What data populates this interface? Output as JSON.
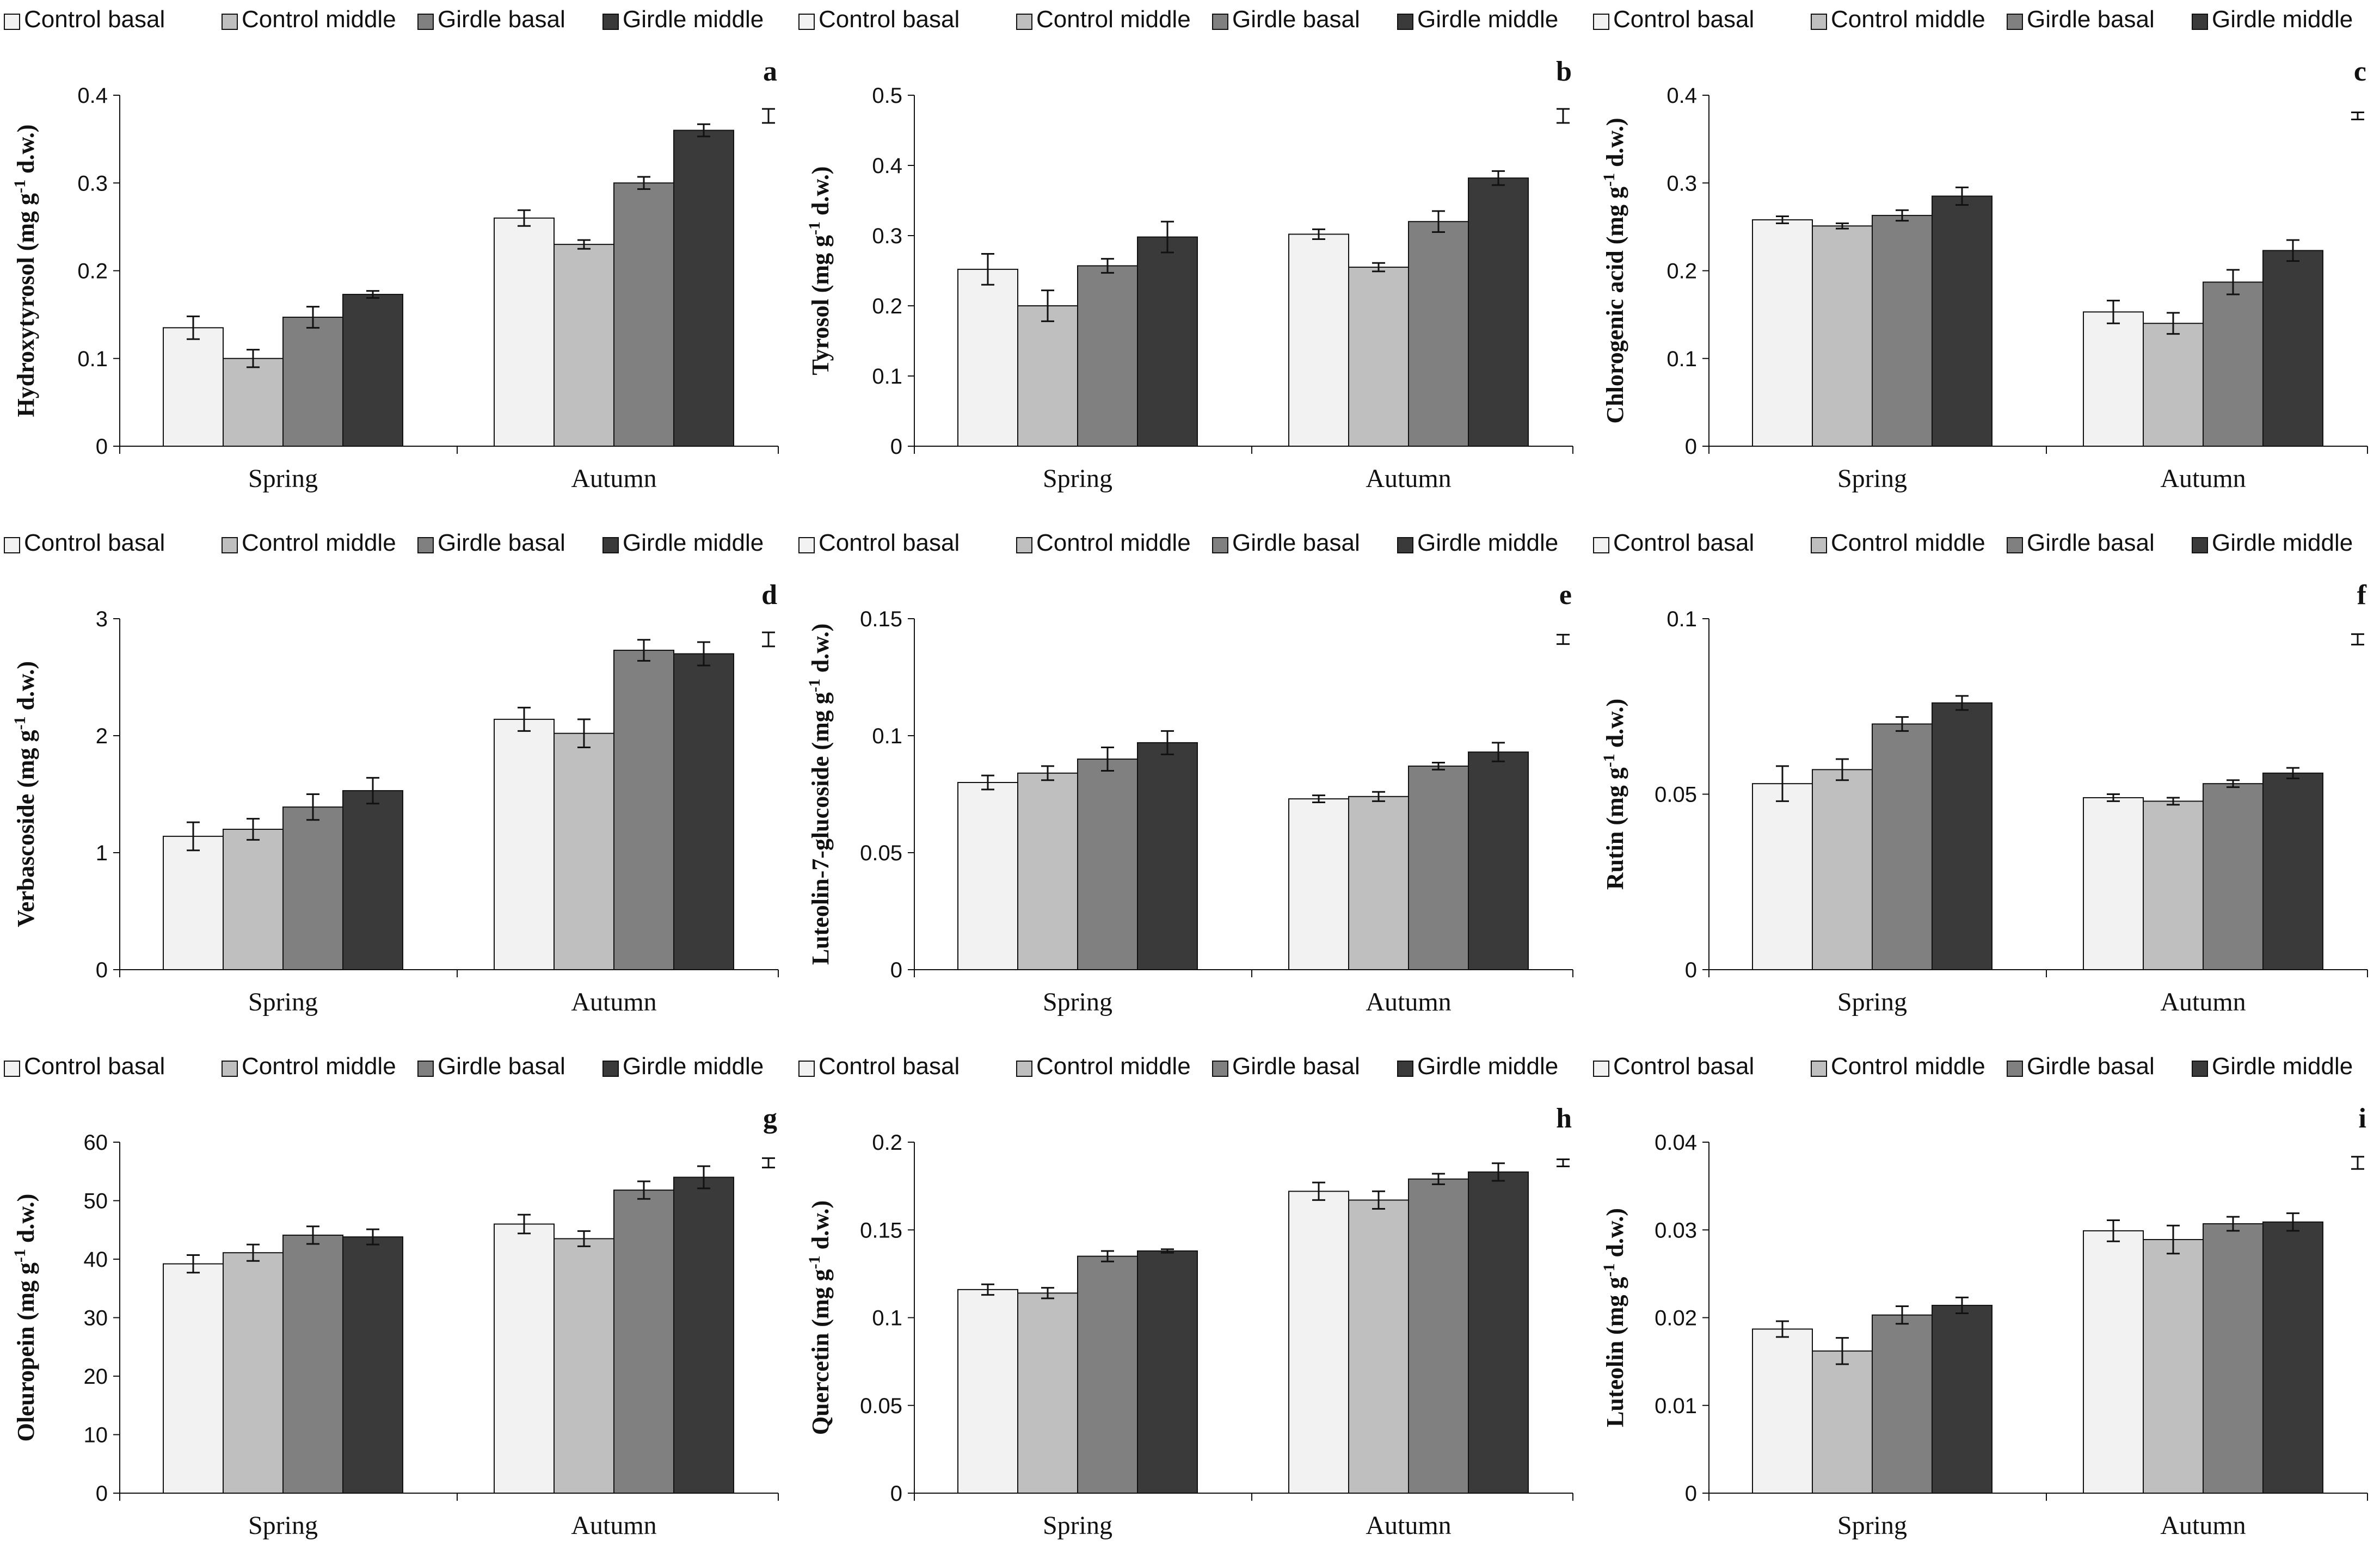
{
  "legend_labels": [
    "Control basal",
    "Control middle",
    "Girdle basal",
    "Girdle middle"
  ],
  "series_colors": [
    "#f2f2f2",
    "#bfbfbf",
    "#808080",
    "#3a3a3a"
  ],
  "chart_data": [
    {
      "type": "bar",
      "panel": "a",
      "ylabel": "Hydroxytyrosol (mg g-1 d.w.)",
      "ylabel_parts": {
        "before": "Hydroxytyrosol (mg g",
        "sup": "-1",
        "after": " d.w.)"
      },
      "categories": [
        "Spring",
        "Autumn"
      ],
      "ylim": [
        0,
        0.4
      ],
      "yticks": [
        "0",
        "0.1",
        "0.2",
        "0.3",
        "0.4"
      ],
      "series": [
        {
          "name": "Control basal",
          "values": [
            0.135,
            0.26
          ],
          "errors": [
            0.013,
            0.009
          ]
        },
        {
          "name": "Control middle",
          "values": [
            0.1,
            0.23
          ],
          "errors": [
            0.01,
            0.005
          ]
        },
        {
          "name": "Girdle basal",
          "values": [
            0.147,
            0.3
          ],
          "errors": [
            0.012,
            0.007
          ]
        },
        {
          "name": "Girdle middle",
          "values": [
            0.173,
            0.36
          ],
          "errors": [
            0.004,
            0.007
          ]
        }
      ],
      "scale_bar": 0.008
    },
    {
      "type": "bar",
      "panel": "b",
      "ylabel": "Tyrosol (mg g-1 d.w.)",
      "ylabel_parts": {
        "before": "Tyrosol (mg g",
        "sup": "-1",
        "after": " d.w.)"
      },
      "categories": [
        "Spring",
        "Autumn"
      ],
      "ylim": [
        0,
        0.5
      ],
      "yticks": [
        "0",
        "0.1",
        "0.2",
        "0.3",
        "0.4",
        "0.5"
      ],
      "series": [
        {
          "name": "Control basal",
          "values": [
            0.252,
            0.302
          ],
          "errors": [
            0.022,
            0.007
          ]
        },
        {
          "name": "Control middle",
          "values": [
            0.2,
            0.255
          ],
          "errors": [
            0.022,
            0.006
          ]
        },
        {
          "name": "Girdle basal",
          "values": [
            0.257,
            0.32
          ],
          "errors": [
            0.01,
            0.015
          ]
        },
        {
          "name": "Girdle middle",
          "values": [
            0.298,
            0.382
          ],
          "errors": [
            0.022,
            0.01
          ]
        }
      ],
      "scale_bar": 0.01
    },
    {
      "type": "bar",
      "panel": "c",
      "ylabel": "Chlorogenic acid (mg g-1 d.w.)",
      "ylabel_parts": {
        "before": "Chlorogenic acid (mg g",
        "sup": "-1",
        "after": " d.w.)"
      },
      "categories": [
        "Spring",
        "Autumn"
      ],
      "ylim": [
        0,
        0.4
      ],
      "yticks": [
        "0",
        "0.1",
        "0.2",
        "0.3",
        "0.4"
      ],
      "series": [
        {
          "name": "Control basal",
          "values": [
            0.258,
            0.153
          ],
          "errors": [
            0.004,
            0.013
          ]
        },
        {
          "name": "Control middle",
          "values": [
            0.251,
            0.14
          ],
          "errors": [
            0.003,
            0.012
          ]
        },
        {
          "name": "Girdle basal",
          "values": [
            0.263,
            0.187
          ],
          "errors": [
            0.006,
            0.014
          ]
        },
        {
          "name": "Girdle middle",
          "values": [
            0.285,
            0.223
          ],
          "errors": [
            0.01,
            0.012
          ]
        }
      ],
      "scale_bar": 0.004
    },
    {
      "type": "bar",
      "panel": "d",
      "ylabel": "Verbascoside (mg g-1 d.w.)",
      "ylabel_parts": {
        "before": "Verbascoside (mg g",
        "sup": "-1",
        "after": " d.w.)"
      },
      "categories": [
        "Spring",
        "Autumn"
      ],
      "ylim": [
        0,
        3
      ],
      "yticks": [
        "0",
        "1",
        "2",
        "3"
      ],
      "series": [
        {
          "name": "Control basal",
          "values": [
            1.14,
            2.14
          ],
          "errors": [
            0.12,
            0.1
          ]
        },
        {
          "name": "Control middle",
          "values": [
            1.2,
            2.02
          ],
          "errors": [
            0.09,
            0.12
          ]
        },
        {
          "name": "Girdle basal",
          "values": [
            1.39,
            2.73
          ],
          "errors": [
            0.11,
            0.09
          ]
        },
        {
          "name": "Girdle middle",
          "values": [
            1.53,
            2.7
          ],
          "errors": [
            0.11,
            0.1
          ]
        }
      ],
      "scale_bar": 0.06
    },
    {
      "type": "bar",
      "panel": "e",
      "ylabel": "Luteolin-7-glucoside (mg g-1 d.w.)",
      "ylabel_parts": {
        "before": "Luteolin-7-glucoside (mg g",
        "sup": "-1",
        "after": " d.w.)"
      },
      "categories": [
        "Spring",
        "Autumn"
      ],
      "ylim": [
        0,
        0.15
      ],
      "yticks": [
        "0",
        "0.05",
        "0.1",
        "0.15"
      ],
      "series": [
        {
          "name": "Control basal",
          "values": [
            0.08,
            0.073
          ],
          "errors": [
            0.003,
            0.0015
          ]
        },
        {
          "name": "Control middle",
          "values": [
            0.084,
            0.074
          ],
          "errors": [
            0.003,
            0.002
          ]
        },
        {
          "name": "Girdle basal",
          "values": [
            0.09,
            0.087
          ],
          "errors": [
            0.005,
            0.0015
          ]
        },
        {
          "name": "Girdle middle",
          "values": [
            0.097,
            0.093
          ],
          "errors": [
            0.005,
            0.004
          ]
        }
      ],
      "scale_bar": 0.002
    },
    {
      "type": "bar",
      "panel": "f",
      "ylabel": "Rutin (mg g-1 d.w.)",
      "ylabel_parts": {
        "before": "Rutin (mg g",
        "sup": "-1",
        "after": " d.w.)"
      },
      "categories": [
        "Spring",
        "Autumn"
      ],
      "ylim": [
        0,
        0.1
      ],
      "yticks": [
        "0",
        "0.05",
        "0.1"
      ],
      "series": [
        {
          "name": "Control basal",
          "values": [
            0.053,
            0.049
          ],
          "errors": [
            0.005,
            0.001
          ]
        },
        {
          "name": "Control middle",
          "values": [
            0.057,
            0.048
          ],
          "errors": [
            0.003,
            0.001
          ]
        },
        {
          "name": "Girdle basal",
          "values": [
            0.07,
            0.053
          ],
          "errors": [
            0.002,
            0.001
          ]
        },
        {
          "name": "Girdle middle",
          "values": [
            0.076,
            0.056
          ],
          "errors": [
            0.002,
            0.0015
          ]
        }
      ],
      "scale_bar": 0.0015
    },
    {
      "type": "bar",
      "panel": "g",
      "ylabel": "Oleuropein (mg g-1 d.w.)",
      "ylabel_parts": {
        "before": "Oleuropein (mg g",
        "sup": "-1",
        "after": " d.w.)"
      },
      "categories": [
        "Spring",
        "Autumn"
      ],
      "ylim": [
        0,
        60
      ],
      "yticks": [
        "0",
        "10",
        "20",
        "30",
        "40",
        "50",
        "60"
      ],
      "series": [
        {
          "name": "Control basal",
          "values": [
            39.2,
            46
          ],
          "errors": [
            1.5,
            1.6
          ]
        },
        {
          "name": "Control middle",
          "values": [
            41.1,
            43.5
          ],
          "errors": [
            1.4,
            1.3
          ]
        },
        {
          "name": "Girdle basal",
          "values": [
            44.1,
            51.8
          ],
          "errors": [
            1.5,
            1.5
          ]
        },
        {
          "name": "Girdle middle",
          "values": [
            43.8,
            54
          ],
          "errors": [
            1.3,
            1.9
          ]
        }
      ],
      "scale_bar": 0.8
    },
    {
      "type": "bar",
      "panel": "h",
      "ylabel": "Quercetin (mg g-1 d.w.)",
      "ylabel_parts": {
        "before": "Quercetin (mg g",
        "sup": "-1",
        "after": " d.w.)"
      },
      "categories": [
        "Spring",
        "Autumn"
      ],
      "ylim": [
        0,
        0.2
      ],
      "yticks": [
        "0",
        "0.05",
        "0.1",
        "0.15",
        "0.2"
      ],
      "series": [
        {
          "name": "Control basal",
          "values": [
            0.116,
            0.172
          ],
          "errors": [
            0.003,
            0.005
          ]
        },
        {
          "name": "Control middle",
          "values": [
            0.114,
            0.167
          ],
          "errors": [
            0.003,
            0.005
          ]
        },
        {
          "name": "Girdle basal",
          "values": [
            0.135,
            0.179
          ],
          "errors": [
            0.003,
            0.003
          ]
        },
        {
          "name": "Girdle middle",
          "values": [
            0.138,
            0.183
          ],
          "errors": [
            0.001,
            0.005
          ]
        }
      ],
      "scale_bar": 0.002
    },
    {
      "type": "bar",
      "panel": "i",
      "ylabel": "Luteolin (mg g-1 d.w.)",
      "ylabel_parts": {
        "before": "Luteolin (mg g",
        "sup": "-1",
        "after": " d.w.)"
      },
      "categories": [
        "Spring",
        "Autumn"
      ],
      "ylim": [
        0,
        0.04
      ],
      "yticks": [
        "0",
        "0.01",
        "0.02",
        "0.03",
        "0.04"
      ],
      "series": [
        {
          "name": "Control basal",
          "values": [
            0.0187,
            0.0299
          ],
          "errors": [
            0.0009,
            0.0012
          ]
        },
        {
          "name": "Control middle",
          "values": [
            0.0162,
            0.0289
          ],
          "errors": [
            0.0015,
            0.0016
          ]
        },
        {
          "name": "Girdle basal",
          "values": [
            0.0203,
            0.0307
          ],
          "errors": [
            0.001,
            0.0008
          ]
        },
        {
          "name": "Girdle middle",
          "values": [
            0.0214,
            0.0309
          ],
          "errors": [
            0.0009,
            0.001
          ]
        }
      ],
      "scale_bar": 0.0007
    }
  ]
}
